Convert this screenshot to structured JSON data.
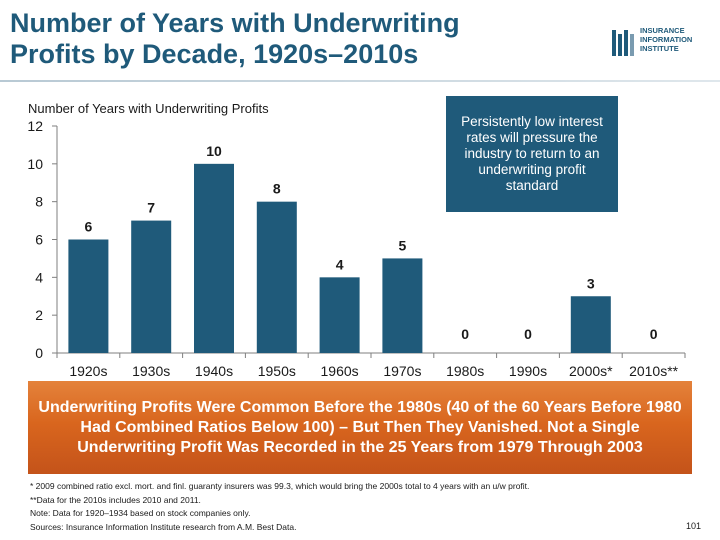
{
  "slide": {
    "title_line1": "Number of Years with Underwriting",
    "title_line2": "Profits by Decade, 1920s–2010s",
    "page_number": "101"
  },
  "logo": {
    "line1": "INSURANCE",
    "line2": "INFORMATION",
    "line3": "INSTITUTE"
  },
  "callout": {
    "text": "Persistently low interest rates will pressure the industry to return to an underwriting profit standard"
  },
  "banner": {
    "text": "Underwriting Profits Were Common Before the 1980s (40 of the 60 Years Before 1980 Had Combined Ratios Below 100) – But Then They Vanished. Not a Single Underwriting Profit Was Recorded in the 25 Years from 1979 Through 2003"
  },
  "footnotes": [
    "* 2009 combined ratio excl. mort. and finl. guaranty insurers was 99.3, which would bring the 2000s total to 4 years with an u/w profit.",
    "**Data for the 2010s includes 2010 and 2011.",
    "Note: Data for 1920–1934 based on stock companies only.",
    "Sources: Insurance Information Institute research from A.M. Best Data."
  ],
  "colors": {
    "bar": "#1f5a7a",
    "title": "#1f5a7a",
    "banner": "#d9661e"
  },
  "chart_data": {
    "type": "bar",
    "ylabel": "Number of Years with Underwriting Profits",
    "categories": [
      "1920s",
      "1930s",
      "1940s",
      "1950s",
      "1960s",
      "1970s",
      "1980s",
      "1990s",
      "2000s*",
      "2010s**"
    ],
    "values": [
      6,
      7,
      10,
      8,
      4,
      5,
      0,
      0,
      3,
      0
    ],
    "data_labels": [
      "6",
      "7",
      "10",
      "8",
      "4",
      "5",
      "0",
      "0",
      "3",
      "0"
    ],
    "ylim": [
      0,
      12
    ],
    "yticks": [
      0,
      2,
      4,
      6,
      8,
      10,
      12
    ],
    "grid": false,
    "legend": "none"
  }
}
